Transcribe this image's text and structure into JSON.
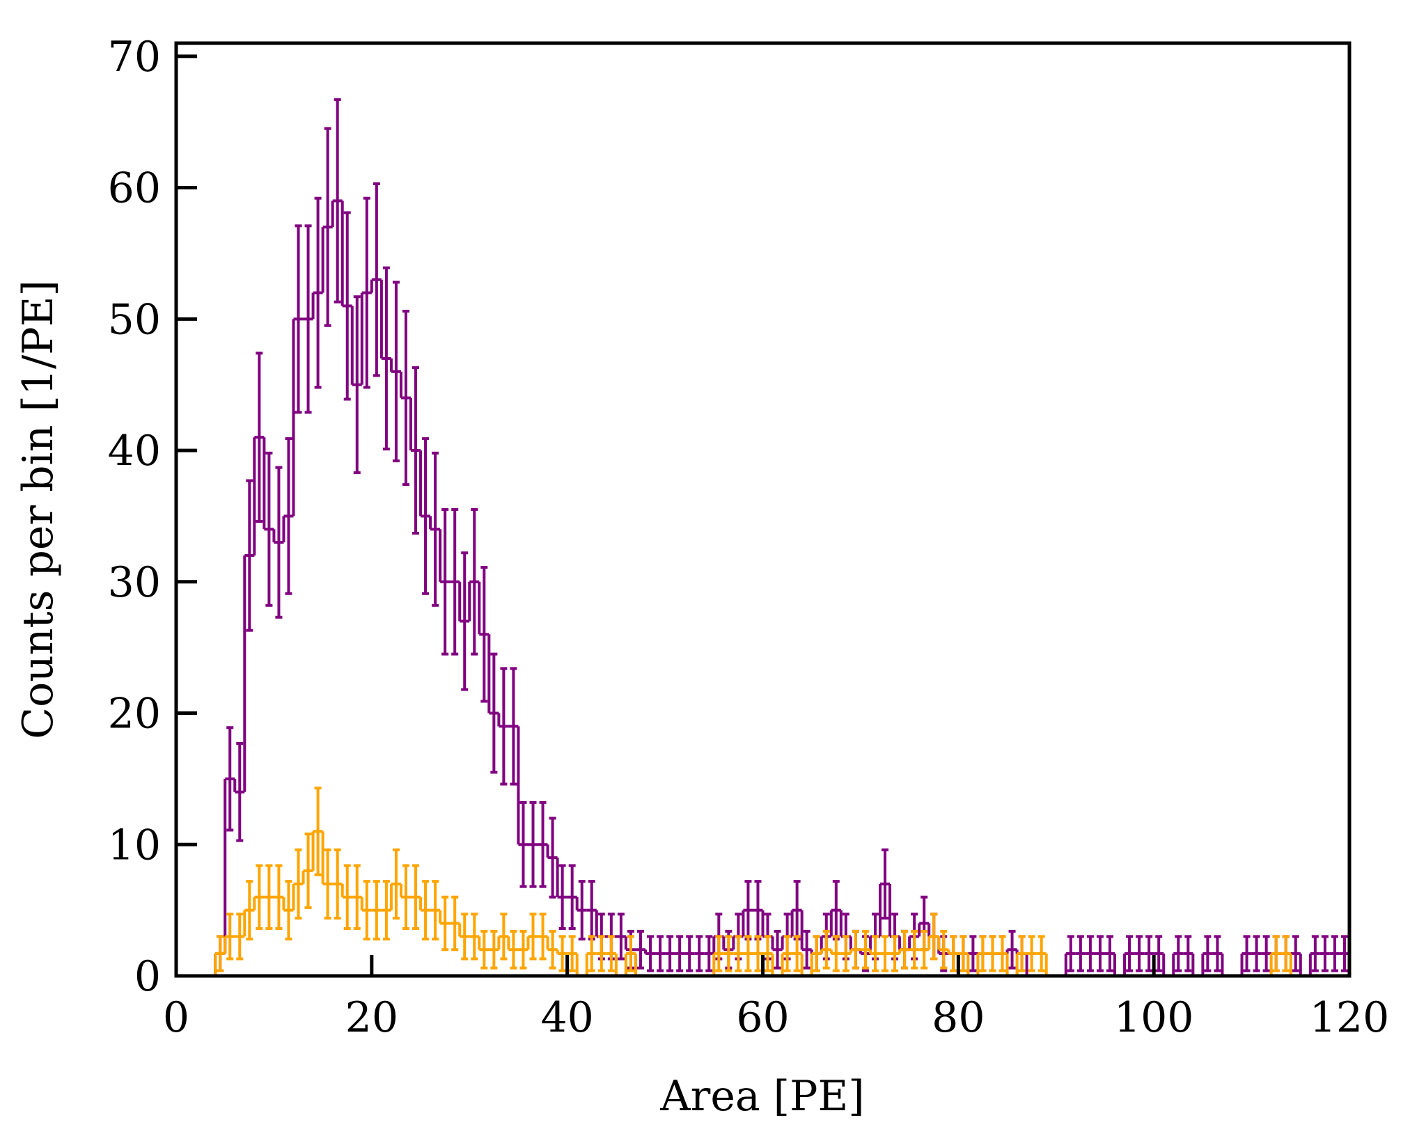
{
  "chart_data": {
    "type": "histogram",
    "xlabel": "Area [PE]",
    "ylabel": "Counts per bin [1/PE]",
    "bins": [
      0,
      1,
      2,
      3,
      4,
      5,
      6,
      7,
      8,
      9,
      10,
      11,
      12,
      13,
      14,
      15,
      16,
      17,
      18,
      19,
      20,
      21,
      22,
      23,
      24,
      25,
      26,
      27,
      28,
      29,
      30,
      31,
      32,
      33,
      34,
      35,
      36,
      37,
      38,
      39,
      40,
      41,
      42,
      43,
      44,
      45,
      46,
      47,
      48,
      49,
      50,
      51,
      52,
      53,
      54,
      55,
      56,
      57,
      58,
      59,
      60,
      61,
      62,
      63,
      64,
      65,
      66,
      67,
      68,
      69,
      70,
      71,
      72,
      73,
      74,
      75,
      76,
      77,
      78,
      79,
      80,
      81,
      82,
      83,
      84,
      85,
      86,
      87,
      88,
      89,
      90,
      91,
      92,
      93,
      94,
      95,
      96,
      97,
      98,
      99,
      100,
      101,
      102,
      103,
      104,
      105,
      106,
      107,
      108,
      109,
      110,
      111,
      112,
      113,
      114,
      115,
      116,
      117,
      118,
      119,
      120
    ],
    "series": [
      {
        "color": "#800080",
        "values": [
          0,
          0,
          0,
          0,
          1.7,
          15,
          14,
          32,
          41,
          34,
          33,
          35,
          50,
          50,
          52,
          57,
          59,
          51,
          45,
          52,
          53,
          47,
          46,
          44,
          40,
          35,
          34,
          30,
          30,
          27,
          30,
          26,
          20,
          19,
          19,
          10,
          10,
          10,
          9,
          6,
          6,
          5,
          5,
          3,
          3,
          3,
          2,
          2,
          1.7,
          1.7,
          1.7,
          1.7,
          1.7,
          1.7,
          1.7,
          3,
          2,
          3,
          5,
          5,
          3,
          2,
          3,
          5,
          2,
          1.7,
          3,
          5,
          3,
          2,
          1.7,
          3,
          7,
          3,
          2,
          3,
          4,
          3,
          1.7,
          1.7,
          1.7,
          1.7,
          1.7,
          1.7,
          1.7,
          2,
          1.7,
          0,
          0,
          0,
          0,
          1.7,
          1.7,
          1.7,
          1.7,
          1.7,
          0,
          1.7,
          1.7,
          1.7,
          1.7,
          0,
          1.7,
          1.7,
          0,
          1.7,
          1.7,
          0,
          0,
          1.7,
          1.7,
          1.7,
          1.7,
          1.7,
          1.7,
          0,
          1.7,
          1.7,
          1.7,
          1.7
        ],
        "errors": [
          0,
          0,
          0,
          0,
          1.3,
          3.9,
          3.7,
          5.7,
          6.4,
          5.8,
          5.7,
          5.9,
          7.1,
          7.1,
          7.2,
          7.5,
          7.7,
          7.1,
          6.7,
          7.2,
          7.3,
          6.9,
          6.8,
          6.6,
          6.3,
          5.9,
          5.8,
          5.5,
          5.5,
          5.2,
          5.5,
          5.1,
          4.5,
          4.4,
          4.4,
          3.2,
          3.2,
          3.2,
          3,
          2.4,
          2.4,
          2.2,
          2.2,
          1.7,
          1.7,
          1.7,
          1.4,
          1.4,
          1.3,
          1.3,
          1.3,
          1.3,
          1.3,
          1.3,
          1.3,
          1.7,
          1.4,
          1.7,
          2.2,
          2.2,
          1.7,
          1.4,
          1.7,
          2.2,
          1.4,
          1.3,
          1.7,
          2.2,
          1.7,
          1.4,
          1.3,
          1.7,
          2.6,
          1.7,
          1.4,
          1.7,
          2,
          1.7,
          1.3,
          1.3,
          1.3,
          1.3,
          1.3,
          1.3,
          1.3,
          1.4,
          1.3,
          0,
          0,
          0,
          0,
          1.3,
          1.3,
          1.3,
          1.3,
          1.3,
          0,
          1.3,
          1.3,
          1.3,
          1.3,
          0,
          1.3,
          1.3,
          0,
          1.3,
          1.3,
          0,
          0,
          1.3,
          1.3,
          1.3,
          1.3,
          1.3,
          1.3,
          0,
          1.3,
          1.3,
          1.3,
          1.3
        ]
      },
      {
        "color": "#ffa500",
        "values": [
          0,
          0,
          0,
          0,
          1.7,
          3,
          3,
          5,
          6,
          6,
          6,
          5,
          7,
          8,
          11,
          7,
          7,
          6,
          6,
          5,
          5,
          5,
          7,
          6,
          6,
          5,
          5,
          4,
          4,
          3,
          3,
          2,
          2,
          3,
          2,
          2,
          3,
          3,
          2,
          1.7,
          1.7,
          0,
          1.7,
          1.7,
          1.7,
          0,
          1.7,
          0,
          0,
          0,
          0,
          0,
          0,
          0,
          0,
          1.7,
          1.7,
          1.7,
          1.7,
          1.7,
          1.7,
          0,
          1.7,
          1.7,
          0,
          1.7,
          2,
          1.7,
          1.7,
          2,
          2,
          1.7,
          1.7,
          1.7,
          2,
          2,
          2,
          3,
          2,
          1.7,
          1.7,
          0,
          1.7,
          1.7,
          1.7,
          0,
          1.7,
          1.7,
          1.7,
          0,
          0,
          0,
          0,
          0,
          0,
          0,
          0,
          0,
          0,
          0,
          0,
          0,
          0,
          0,
          0,
          0,
          0,
          0,
          0,
          0,
          0,
          0,
          1.7,
          1.7,
          0,
          0,
          0,
          0,
          0,
          0
        ],
        "errors": [
          0,
          0,
          0,
          0,
          1.3,
          1.7,
          1.7,
          2.2,
          2.4,
          2.4,
          2.4,
          2.2,
          2.6,
          2.8,
          3.3,
          2.6,
          2.6,
          2.4,
          2.4,
          2.2,
          2.2,
          2.2,
          2.6,
          2.4,
          2.4,
          2.2,
          2.2,
          2,
          2,
          1.7,
          1.7,
          1.4,
          1.4,
          1.7,
          1.4,
          1.4,
          1.7,
          1.7,
          1.4,
          1.3,
          1.3,
          0,
          1.3,
          1.3,
          1.3,
          0,
          1.3,
          0,
          0,
          0,
          0,
          0,
          0,
          0,
          0,
          1.3,
          1.3,
          1.3,
          1.3,
          1.3,
          1.3,
          0,
          1.3,
          1.3,
          0,
          1.3,
          1.4,
          1.3,
          1.3,
          1.4,
          1.4,
          1.3,
          1.3,
          1.3,
          1.4,
          1.4,
          1.4,
          1.7,
          1.4,
          1.3,
          1.3,
          0,
          1.3,
          1.3,
          1.3,
          0,
          1.3,
          1.3,
          1.3,
          0,
          0,
          0,
          0,
          0,
          0,
          0,
          0,
          0,
          0,
          0,
          0,
          0,
          0,
          0,
          0,
          0,
          0,
          0,
          0,
          0,
          0,
          0,
          1.3,
          1.3,
          0,
          0,
          0,
          0,
          0,
          0
        ]
      }
    ],
    "xlim": [
      0,
      120
    ],
    "xticks": [
      0,
      20,
      40,
      60,
      80,
      100,
      120
    ],
    "ylim": [
      0,
      71
    ],
    "yticks": [
      0,
      10,
      20,
      30,
      40,
      50,
      60,
      70
    ]
  }
}
